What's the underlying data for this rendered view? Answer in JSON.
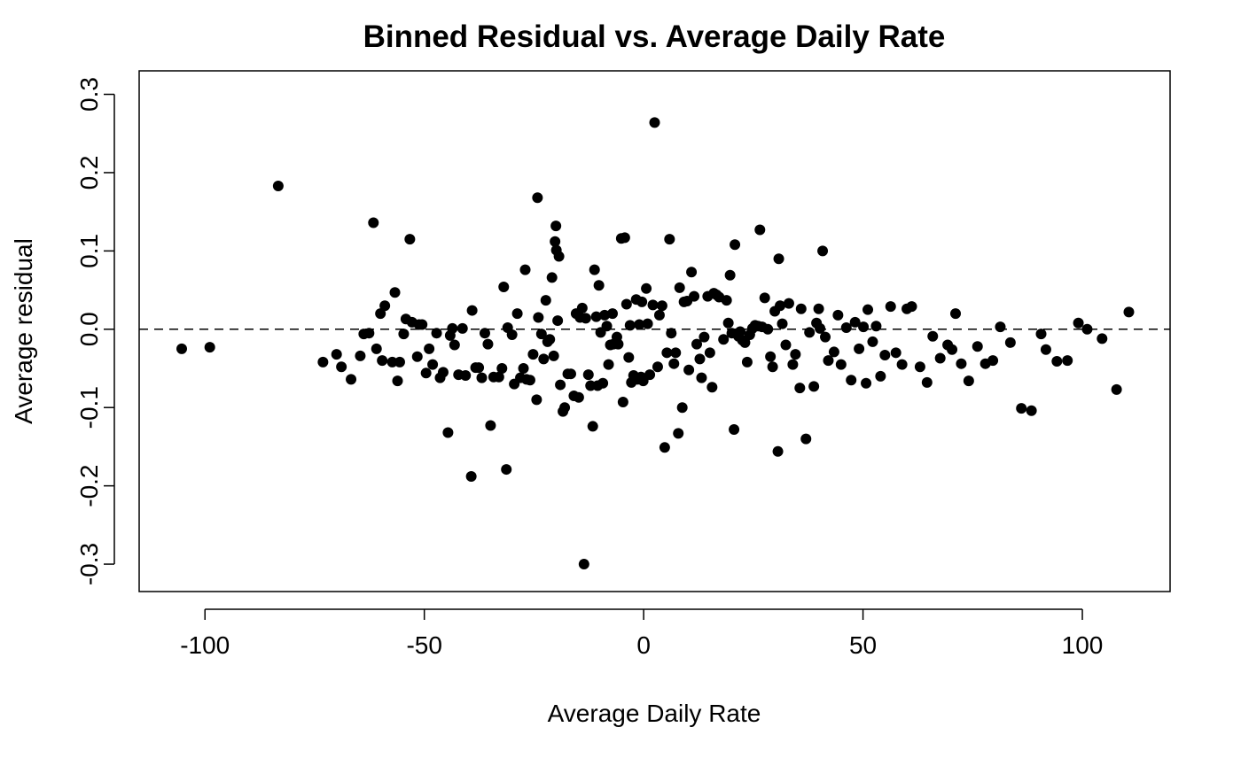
{
  "chart_data": {
    "type": "scatter",
    "title": "Binned Residual vs. Average Daily Rate",
    "xlabel": "Average Daily Rate",
    "ylabel": "Average residual",
    "xlim": [
      -115,
      120
    ],
    "ylim": [
      -0.335,
      0.33
    ],
    "xticks": [
      -100,
      -50,
      0,
      50,
      100
    ],
    "xtick_labels": [
      "-100",
      "-50",
      "0",
      "50",
      "100"
    ],
    "yticks": [
      -0.3,
      -0.2,
      -0.1,
      0.0,
      0.1,
      0.2,
      0.3
    ],
    "ytick_labels": [
      "-0.3",
      "-0.2",
      "-0.1",
      "0.0",
      "0.1",
      "0.2",
      "0.3"
    ],
    "reference_line": {
      "y": 0,
      "style": "dashed"
    },
    "grid": false,
    "point_color": "#000000",
    "points": [
      [
        -105.3,
        -0.025
      ],
      [
        -98.9,
        -0.023
      ],
      [
        -83.3,
        0.183
      ],
      [
        -73.1,
        -0.042
      ],
      [
        -70.0,
        -0.032
      ],
      [
        -68.9,
        -0.048
      ],
      [
        -66.7,
        -0.064
      ],
      [
        -64.6,
        -0.034
      ],
      [
        -63.8,
        -0.006
      ],
      [
        -62.6,
        -0.005
      ],
      [
        -61.6,
        0.136
      ],
      [
        -60.9,
        -0.025
      ],
      [
        -60.0,
        0.02
      ],
      [
        -59.6,
        -0.04
      ],
      [
        -59.0,
        0.03
      ],
      [
        -57.3,
        -0.042
      ],
      [
        -56.7,
        0.047
      ],
      [
        -56.1,
        -0.066
      ],
      [
        -55.6,
        -0.042
      ],
      [
        -54.7,
        -0.006
      ],
      [
        -54.2,
        0.013
      ],
      [
        -53.3,
        0.115
      ],
      [
        -52.8,
        0.009
      ],
      [
        -51.6,
        -0.035
      ],
      [
        -51.2,
        0.006
      ],
      [
        -50.5,
        0.006
      ],
      [
        -49.6,
        -0.056
      ],
      [
        -48.9,
        -0.025
      ],
      [
        -48.1,
        -0.045
      ],
      [
        -47.2,
        -0.005
      ],
      [
        -46.4,
        -0.062
      ],
      [
        -45.7,
        -0.055
      ],
      [
        -44.6,
        -0.132
      ],
      [
        -44.1,
        -0.008
      ],
      [
        -43.6,
        0.001
      ],
      [
        -43.1,
        -0.02
      ],
      [
        -42.2,
        -0.058
      ],
      [
        -41.3,
        0.001
      ],
      [
        -40.6,
        -0.059
      ],
      [
        -39.3,
        -0.188
      ],
      [
        -39.1,
        0.024
      ],
      [
        -38.3,
        -0.049
      ],
      [
        -37.6,
        -0.049
      ],
      [
        -36.9,
        -0.062
      ],
      [
        -36.2,
        -0.005
      ],
      [
        -35.5,
        -0.019
      ],
      [
        -34.9,
        -0.123
      ],
      [
        -34.2,
        -0.061
      ],
      [
        -33.0,
        -0.061
      ],
      [
        -32.3,
        -0.05
      ],
      [
        -31.9,
        0.054
      ],
      [
        -31.3,
        -0.179
      ],
      [
        -31.0,
        0.002
      ],
      [
        -30.0,
        -0.007
      ],
      [
        -29.5,
        -0.07
      ],
      [
        -28.8,
        0.02
      ],
      [
        -28.1,
        -0.062
      ],
      [
        -27.4,
        -0.05
      ],
      [
        -27.0,
        0.076
      ],
      [
        -26.7,
        -0.064
      ],
      [
        -25.9,
        -0.065
      ],
      [
        -25.2,
        -0.032
      ],
      [
        -24.4,
        -0.09
      ],
      [
        -24.2,
        0.168
      ],
      [
        -24.0,
        0.015
      ],
      [
        -23.3,
        -0.006
      ],
      [
        -22.8,
        -0.038
      ],
      [
        -22.3,
        0.037
      ],
      [
        -21.9,
        -0.016
      ],
      [
        -21.4,
        -0.013
      ],
      [
        -20.9,
        0.066
      ],
      [
        -20.5,
        -0.034
      ],
      [
        -20.2,
        0.112
      ],
      [
        -20.0,
        0.132
      ],
      [
        -19.9,
        0.101
      ],
      [
        -19.6,
        0.011
      ],
      [
        -19.3,
        0.093
      ],
      [
        -19.0,
        -0.071
      ],
      [
        -18.4,
        -0.105
      ],
      [
        -18.0,
        -0.1
      ],
      [
        -17.3,
        -0.057
      ],
      [
        -16.6,
        -0.057
      ],
      [
        -15.9,
        -0.085
      ],
      [
        -15.4,
        0.02
      ],
      [
        -14.8,
        -0.087
      ],
      [
        -14.5,
        0.015
      ],
      [
        -14.0,
        0.027
      ],
      [
        -13.6,
        -0.3
      ],
      [
        -13.2,
        0.014
      ],
      [
        -12.6,
        -0.058
      ],
      [
        -12.1,
        -0.072
      ],
      [
        -11.6,
        -0.124
      ],
      [
        -11.2,
        0.076
      ],
      [
        -10.8,
        0.016
      ],
      [
        -10.5,
        -0.072
      ],
      [
        -10.2,
        0.056
      ],
      [
        -9.8,
        -0.004
      ],
      [
        -9.3,
        -0.069
      ],
      [
        -8.9,
        0.018
      ],
      [
        -8.4,
        0.004
      ],
      [
        -8.0,
        -0.045
      ],
      [
        -7.6,
        -0.02
      ],
      [
        -7.1,
        0.02
      ],
      [
        -6.9,
        -0.019
      ],
      [
        -6.1,
        -0.01
      ],
      [
        -5.8,
        -0.019
      ],
      [
        -5.1,
        0.116
      ],
      [
        -4.7,
        -0.093
      ],
      [
        -4.3,
        0.117
      ],
      [
        -3.9,
        0.032
      ],
      [
        -3.4,
        -0.036
      ],
      [
        -3.1,
        0.005
      ],
      [
        -2.8,
        -0.068
      ],
      [
        -2.3,
        -0.059
      ],
      [
        -1.7,
        0.038
      ],
      [
        -1.4,
        -0.064
      ],
      [
        -1.0,
        0.006
      ],
      [
        -0.6,
        -0.061
      ],
      [
        -0.4,
        0.035
      ],
      [
        -0.1,
        -0.066
      ],
      [
        0.6,
        0.052
      ],
      [
        0.9,
        0.007
      ],
      [
        1.4,
        -0.058
      ],
      [
        2.1,
        0.031
      ],
      [
        2.5,
        0.264
      ],
      [
        3.2,
        -0.048
      ],
      [
        3.6,
        0.018
      ],
      [
        4.2,
        0.03
      ],
      [
        4.8,
        -0.151
      ],
      [
        5.3,
        -0.03
      ],
      [
        5.9,
        0.115
      ],
      [
        6.3,
        -0.005
      ],
      [
        6.9,
        -0.044
      ],
      [
        7.3,
        -0.03
      ],
      [
        7.9,
        -0.133
      ],
      [
        8.2,
        0.053
      ],
      [
        8.8,
        -0.1
      ],
      [
        9.2,
        0.035
      ],
      [
        9.9,
        0.036
      ],
      [
        10.3,
        -0.052
      ],
      [
        10.9,
        0.073
      ],
      [
        11.5,
        0.042
      ],
      [
        12.1,
        -0.019
      ],
      [
        12.8,
        -0.038
      ],
      [
        13.2,
        -0.062
      ],
      [
        13.8,
        -0.01
      ],
      [
        14.6,
        0.042
      ],
      [
        15.1,
        -0.03
      ],
      [
        15.6,
        -0.074
      ],
      [
        16.0,
        0.046
      ],
      [
        16.6,
        0.044
      ],
      [
        17.2,
        0.041
      ],
      [
        18.2,
        -0.013
      ],
      [
        18.9,
        0.037
      ],
      [
        19.3,
        0.008
      ],
      [
        19.7,
        0.069
      ],
      [
        20.1,
        -0.005
      ],
      [
        20.6,
        -0.128
      ],
      [
        20.8,
        0.108
      ],
      [
        21.6,
        -0.009
      ],
      [
        22.0,
        -0.003
      ],
      [
        22.5,
        -0.014
      ],
      [
        23.1,
        -0.017
      ],
      [
        23.6,
        -0.042
      ],
      [
        24.2,
        -0.007
      ],
      [
        24.8,
        0.001
      ],
      [
        25.4,
        0.005
      ],
      [
        26.1,
        0.004
      ],
      [
        26.5,
        0.127
      ],
      [
        27.0,
        0.003
      ],
      [
        27.6,
        0.04
      ],
      [
        28.3,
        0.0
      ],
      [
        28.9,
        -0.035
      ],
      [
        29.4,
        -0.048
      ],
      [
        29.9,
        0.023
      ],
      [
        30.6,
        -0.156
      ],
      [
        30.8,
        0.09
      ],
      [
        31.1,
        0.03
      ],
      [
        31.6,
        0.007
      ],
      [
        32.4,
        -0.02
      ],
      [
        33.1,
        0.033
      ],
      [
        34.0,
        -0.045
      ],
      [
        34.6,
        -0.032
      ],
      [
        35.6,
        -0.075
      ],
      [
        35.9,
        0.026
      ],
      [
        37.0,
        -0.14
      ],
      [
        37.8,
        -0.004
      ],
      [
        38.8,
        -0.073
      ],
      [
        39.4,
        0.008
      ],
      [
        39.9,
        0.026
      ],
      [
        40.2,
        0.001
      ],
      [
        40.8,
        0.1
      ],
      [
        41.4,
        -0.01
      ],
      [
        42.1,
        -0.04
      ],
      [
        43.4,
        -0.029
      ],
      [
        44.3,
        0.018
      ],
      [
        45.0,
        -0.045
      ],
      [
        46.2,
        0.002
      ],
      [
        47.3,
        -0.065
      ],
      [
        48.2,
        0.009
      ],
      [
        49.1,
        -0.025
      ],
      [
        50.1,
        0.003
      ],
      [
        50.7,
        -0.069
      ],
      [
        51.1,
        0.025
      ],
      [
        52.2,
        -0.016
      ],
      [
        53.0,
        0.004
      ],
      [
        54.0,
        -0.06
      ],
      [
        55.0,
        -0.033
      ],
      [
        56.3,
        0.029
      ],
      [
        57.5,
        -0.03
      ],
      [
        58.9,
        -0.045
      ],
      [
        60.0,
        0.026
      ],
      [
        61.1,
        0.029
      ],
      [
        63.0,
        -0.048
      ],
      [
        64.6,
        -0.068
      ],
      [
        65.9,
        -0.009
      ],
      [
        67.6,
        -0.037
      ],
      [
        69.3,
        -0.02
      ],
      [
        70.3,
        -0.026
      ],
      [
        71.1,
        0.02
      ],
      [
        72.4,
        -0.044
      ],
      [
        74.1,
        -0.066
      ],
      [
        76.1,
        -0.022
      ],
      [
        77.9,
        -0.044
      ],
      [
        79.6,
        -0.04
      ],
      [
        81.3,
        0.003
      ],
      [
        83.6,
        -0.017
      ],
      [
        86.1,
        -0.101
      ],
      [
        88.4,
        -0.104
      ],
      [
        90.6,
        -0.006
      ],
      [
        91.7,
        -0.026
      ],
      [
        94.2,
        -0.041
      ],
      [
        96.6,
        -0.04
      ],
      [
        99.1,
        0.008
      ],
      [
        101.1,
        0.0
      ],
      [
        104.5,
        -0.012
      ],
      [
        107.8,
        -0.077
      ],
      [
        110.6,
        0.022
      ]
    ]
  }
}
